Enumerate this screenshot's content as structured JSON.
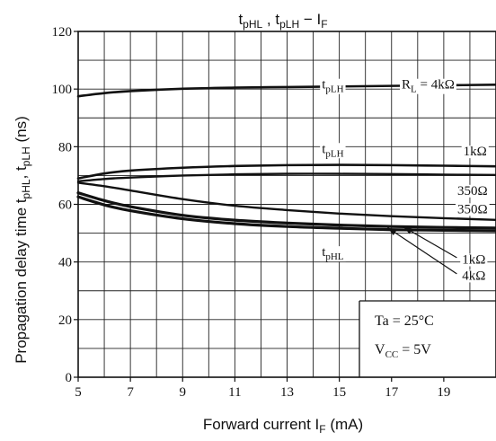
{
  "chart_data": {
    "type": "line",
    "title": {
      "t1": "t",
      "s1": "pHL",
      "mid": " , t",
      "s2": "pLH",
      "dash": " − I",
      "s3": "F"
    },
    "xlabel": {
      "main": "Forward current",
      "sym": "I",
      "sub": "F",
      "unit": "(mA)"
    },
    "ylabel": {
      "main": "Propagation delay time",
      "t1": "t",
      "s1": "pHL",
      "comma": ", t",
      "s2": "pLH",
      "unit": "(ns)"
    },
    "xlim": [
      5,
      21
    ],
    "ylim": [
      0,
      120
    ],
    "x_ticks": [
      5,
      7,
      9,
      11,
      13,
      15,
      17,
      19
    ],
    "y_ticks": [
      0,
      20,
      40,
      60,
      80,
      100,
      120
    ],
    "x_minor_step": 1,
    "y_minor_step": 10,
    "grid": true,
    "series": [
      {
        "x": [
          5,
          6,
          7,
          9,
          11,
          13,
          15,
          17,
          19,
          21
        ],
        "values": [
          97.5,
          98.6,
          99.3,
          100.1,
          100.5,
          100.7,
          100.9,
          101.1,
          101.3,
          101.5
        ],
        "width": 2.6
      },
      {
        "x": [
          5,
          6,
          7,
          9,
          11,
          13,
          15,
          17,
          19,
          21
        ],
        "values": [
          69,
          70.7,
          71.7,
          72.7,
          73.3,
          73.6,
          73.7,
          73.6,
          73.4,
          73.2
        ],
        "width": 2.6
      },
      {
        "x": [
          5,
          6,
          7,
          9,
          11,
          13,
          15,
          17,
          19,
          21
        ],
        "values": [
          68,
          68.8,
          69.3,
          70,
          70.4,
          70.6,
          70.6,
          70.5,
          70.3,
          70.2
        ],
        "width": 2.4
      },
      {
        "x": [
          5,
          6,
          7,
          9,
          11,
          13,
          15,
          17,
          19,
          21
        ],
        "values": [
          67.5,
          66.3,
          64.8,
          61.8,
          59.5,
          58,
          56.8,
          55.9,
          55.2,
          54.6
        ],
        "width": 2.4
      },
      {
        "x": [
          5,
          6,
          7,
          9,
          11,
          13,
          15,
          17,
          19,
          21
        ],
        "values": [
          64,
          61.3,
          59.2,
          56.2,
          54.5,
          53.5,
          52.8,
          52.3,
          52,
          51.8
        ],
        "width": 3.2
      },
      {
        "x": [
          5,
          6,
          7,
          9,
          11,
          13,
          15,
          17,
          19,
          21
        ],
        "values": [
          62.6,
          59.8,
          57.8,
          55,
          53.3,
          52.3,
          51.7,
          51.2,
          51,
          50.8
        ],
        "width": 3.2
      }
    ],
    "annotations": {
      "tplh_top": {
        "t": "t",
        "sub": "pLH",
        "x": 14.75,
        "y": 101.7
      },
      "rl": {
        "r": "R",
        "sub": "L",
        "eq": " = 4kΩ",
        "x": 18.4,
        "y": 101.7
      },
      "tplh_mid": {
        "t": "t",
        "sub": "pLH",
        "x": 14.75,
        "y": 79.4
      },
      "k1_top": {
        "text": "1kΩ",
        "x": 20.2,
        "y": 78.5
      },
      "r350a": {
        "text": "350Ω",
        "x": 20.1,
        "y": 64.9
      },
      "r350b": {
        "text": "350Ω",
        "x": 20.1,
        "y": 58.5
      },
      "tphl": {
        "t": "t",
        "sub": "pHL",
        "x": 14.75,
        "y": 43.6
      },
      "k1_bot": {
        "text": "1kΩ",
        "x": 20.15,
        "y": 41.0
      },
      "k4_bot": {
        "text": "4kΩ",
        "x": 20.15,
        "y": 35.4
      }
    },
    "arrows": [
      {
        "from": [
          19.5,
          41.5
        ],
        "to": [
          17.45,
          52.2
        ]
      },
      {
        "from": [
          19.5,
          35.9
        ],
        "to": [
          16.85,
          51.9
        ]
      }
    ],
    "conditions": {
      "ta": "Ta = 25°C",
      "vcc_v": "V",
      "vcc_sub": "CC",
      "vcc_eq": " = 5V"
    }
  }
}
